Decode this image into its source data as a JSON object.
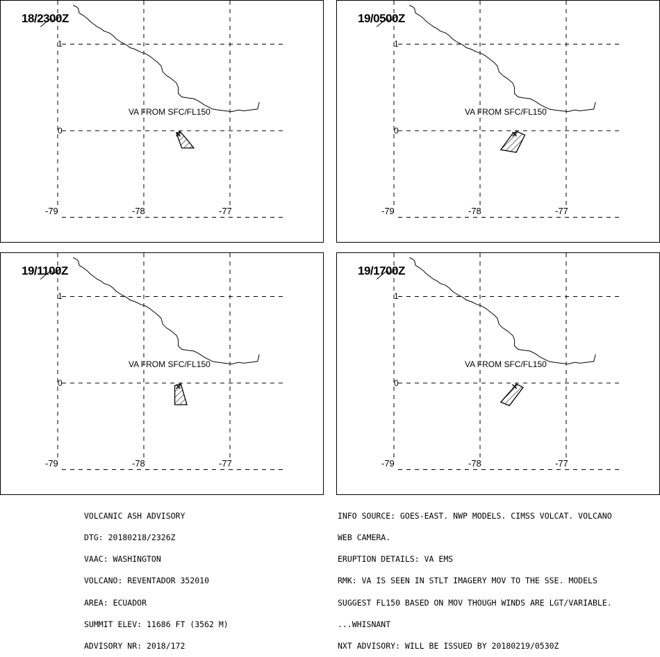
{
  "panels": [
    {
      "title": "18/2300Z",
      "va_label": "VA FROM SFC/FL150",
      "lat_labels": [
        "1",
        "0"
      ],
      "lon_labels": [
        "-79",
        "-78",
        "-77"
      ]
    },
    {
      "title": "19/0500Z",
      "va_label": "VA FROM SFC/FL150",
      "lat_labels": [
        "1",
        "0"
      ],
      "lon_labels": [
        "-79",
        "-78",
        "-77"
      ]
    },
    {
      "title": "19/1100Z",
      "va_label": "VA FROM SFC/FL150",
      "lat_labels": [
        "1",
        "0"
      ],
      "lon_labels": [
        "-79",
        "-78",
        "-77"
      ]
    },
    {
      "title": "19/1700Z",
      "va_label": "VA FROM SFC/FL150",
      "lat_labels": [
        "1",
        "0"
      ],
      "lon_labels": [
        "-79",
        "-78",
        "-77"
      ]
    }
  ],
  "advisory": {
    "lines": [
      "VOLCANIC ASH ADVISORY",
      "DTG: 20180218/2326Z",
      "VAAC: WASHINGTON",
      "VOLCANO: REVENTADOR 352010",
      "AREA: ECUADOR",
      "SUMMIT ELEV: 11686 FT (3562 M)",
      "ADVISORY NR: 2018/172"
    ]
  },
  "details": {
    "lines": [
      "INFO SOURCE: GOES-EAST. NWP MODELS. CIMSS VOLCAT. VOLCANO",
      "WEB CAMERA.",
      "ERUPTION DETAILS: VA EMS",
      "RMK: VA IS SEEN IN STLT IMAGERY MOV TO THE SSE. MODELS",
      "SUGGEST FL150 BASED ON MOV THOUGH WINDS ARE LGT/VARIABLE.",
      "...WHISNANT",
      "NXT ADVISORY: WILL BE ISSUED BY 20180219/0530Z"
    ]
  },
  "map": {
    "volcano_marker": "x-icon",
    "ash_polygons": [
      [
        [
          -77.62,
          -0.03
        ],
        [
          -77.56,
          -0.2
        ],
        [
          -77.42,
          -0.2
        ],
        [
          -77.5,
          -0.1
        ],
        [
          -77.58,
          -0.01
        ]
      ],
      [
        [
          -77.62,
          -0.03
        ],
        [
          -77.76,
          -0.22
        ],
        [
          -77.58,
          -0.25
        ],
        [
          -77.48,
          -0.05
        ],
        [
          -77.57,
          -0.01
        ]
      ],
      [
        [
          -77.64,
          -0.03
        ],
        [
          -77.64,
          -0.25
        ],
        [
          -77.5,
          -0.25
        ],
        [
          -77.57,
          -0.01
        ]
      ],
      [
        [
          -77.6,
          -0.04
        ],
        [
          -77.76,
          -0.22
        ],
        [
          -77.66,
          -0.26
        ],
        [
          -77.5,
          -0.05
        ],
        [
          -77.58,
          -0.01
        ]
      ]
    ],
    "coastline": [
      [
        -78.82,
        1.45
      ],
      [
        -78.78,
        1.43
      ],
      [
        -78.76,
        1.41
      ],
      [
        -78.75,
        1.36
      ],
      [
        -78.7,
        1.33
      ],
      [
        -78.66,
        1.3
      ],
      [
        -78.62,
        1.26
      ],
      [
        -78.58,
        1.23
      ],
      [
        -78.54,
        1.2
      ],
      [
        -78.5,
        1.18
      ],
      [
        -78.46,
        1.15
      ],
      [
        -78.4,
        1.13
      ],
      [
        -78.36,
        1.1
      ],
      [
        -78.32,
        1.06
      ],
      [
        -78.26,
        1.02
      ],
      [
        -78.2,
        0.99
      ],
      [
        -78.16,
        0.96
      ],
      [
        -78.1,
        0.94
      ],
      [
        -78.04,
        0.91
      ],
      [
        -77.98,
        0.89
      ],
      [
        -77.93,
        0.86
      ],
      [
        -77.88,
        0.82
      ],
      [
        -77.84,
        0.79
      ],
      [
        -77.8,
        0.75
      ],
      [
        -77.78,
        0.68
      ],
      [
        -77.74,
        0.64
      ],
      [
        -77.68,
        0.6
      ],
      [
        -77.62,
        0.55
      ],
      [
        -77.6,
        0.5
      ],
      [
        -77.6,
        0.43
      ],
      [
        -77.56,
        0.39
      ],
      [
        -77.5,
        0.38
      ],
      [
        -77.42,
        0.37
      ],
      [
        -77.36,
        0.34
      ],
      [
        -77.3,
        0.3
      ],
      [
        -77.24,
        0.27
      ],
      [
        -77.2,
        0.25
      ],
      [
        -77.14,
        0.24
      ],
      [
        -77.06,
        0.23
      ],
      [
        -76.98,
        0.22
      ],
      [
        -76.9,
        0.24
      ],
      [
        -76.84,
        0.23
      ],
      [
        -76.76,
        0.24
      ],
      [
        -76.68,
        0.25
      ],
      [
        -76.66,
        0.33
      ]
    ],
    "coastline_west": [
      [
        -79.2,
        1.2
      ],
      [
        -79.14,
        1.25
      ],
      [
        -79.08,
        1.3
      ],
      [
        -79.05,
        1.26
      ],
      [
        -79.0,
        1.3
      ],
      [
        -78.96,
        1.33
      ]
    ]
  }
}
